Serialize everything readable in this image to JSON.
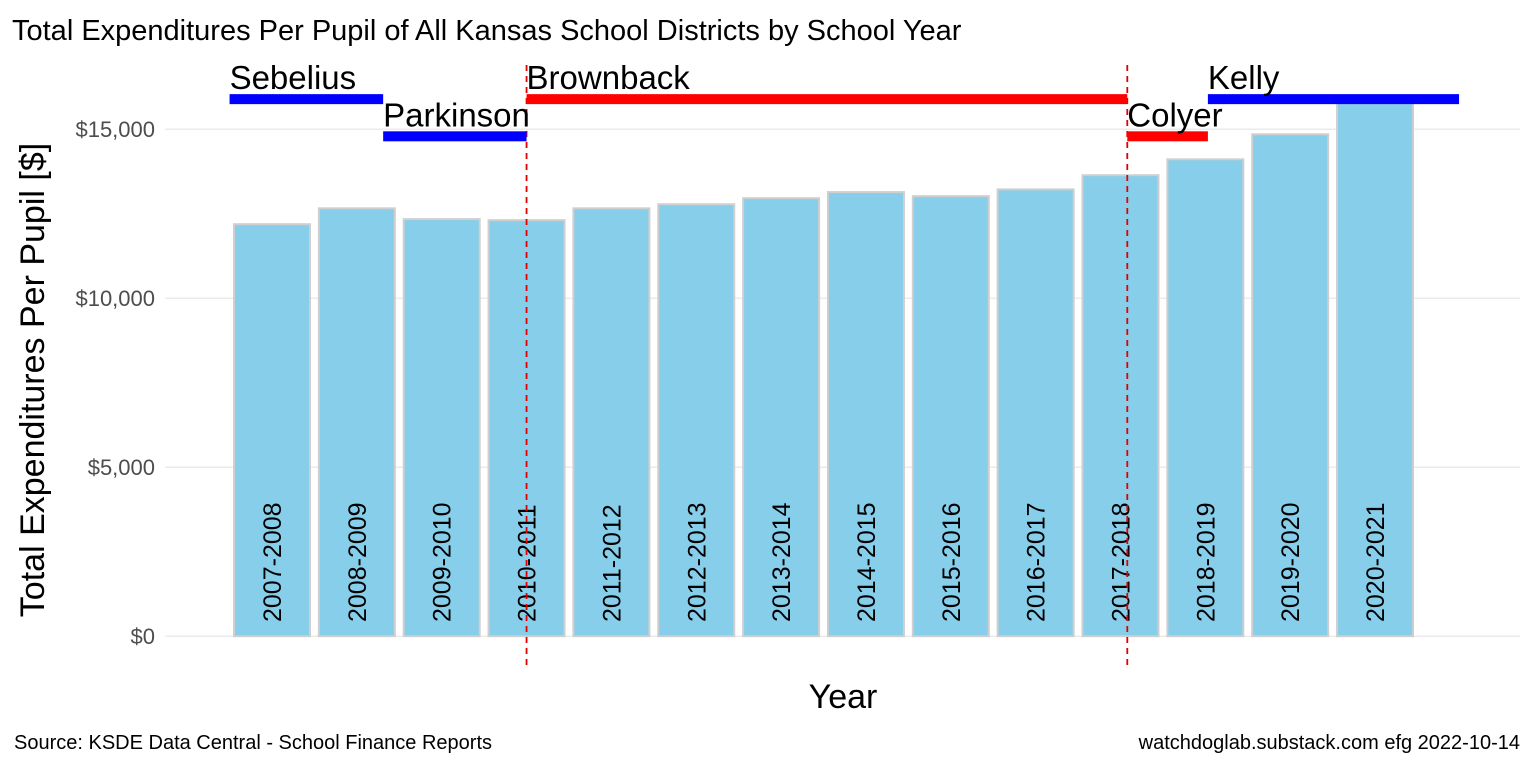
{
  "chart_data": {
    "type": "bar",
    "title": "Total Expenditures Per Pupil of All Kansas School Districts by School Year",
    "x_label": "Year",
    "y_label": "Total Expenditures Per Pupil [$]",
    "source": "Source:  KSDE Data Central - School Finance Reports",
    "credit": "watchdoglab.substack.com  efg 2022-10-14",
    "categories": [
      "2007-2008",
      "2008-2009",
      "2009-2010",
      "2010-2011",
      "2011-2012",
      "2012-2013",
      "2013-2014",
      "2014-2015",
      "2015-2016",
      "2016-2017",
      "2017-2018",
      "2018-2019",
      "2019-2020",
      "2020-2021"
    ],
    "values": [
      12190,
      12660,
      12340,
      12310,
      12660,
      12780,
      12960,
      13140,
      13020,
      13220,
      13640,
      14110,
      14850,
      15770
    ],
    "color": "#87ceeb",
    "ylim": [
      -1000,
      16900
    ],
    "yticks": [
      {
        "value": 0,
        "label": "$0"
      },
      {
        "value": 5000,
        "label": "$5,000"
      },
      {
        "value": 10000,
        "label": "$10,000"
      },
      {
        "value": 15000,
        "label": "$15,000"
      }
    ],
    "grid": true,
    "governors": [
      {
        "name": "Sebelius",
        "color": "#0000ff",
        "start": 0.5,
        "end": 2.31,
        "level": 15890
      },
      {
        "name": "Parkinson",
        "color": "#0000ff",
        "start": 2.31,
        "end": 4.0,
        "level": 14790
      },
      {
        "name": "Brownback",
        "color": "#ff0000",
        "start": 4.0,
        "end": 11.08,
        "level": 15890
      },
      {
        "name": "Colyer",
        "color": "#ff0000",
        "start": 11.08,
        "end": 12.03,
        "level": 14790
      },
      {
        "name": "Kelly",
        "color": "#0000ff",
        "start": 12.03,
        "end": 14.99,
        "level": 15890
      }
    ],
    "vlines": [
      4.0,
      11.08
    ]
  }
}
